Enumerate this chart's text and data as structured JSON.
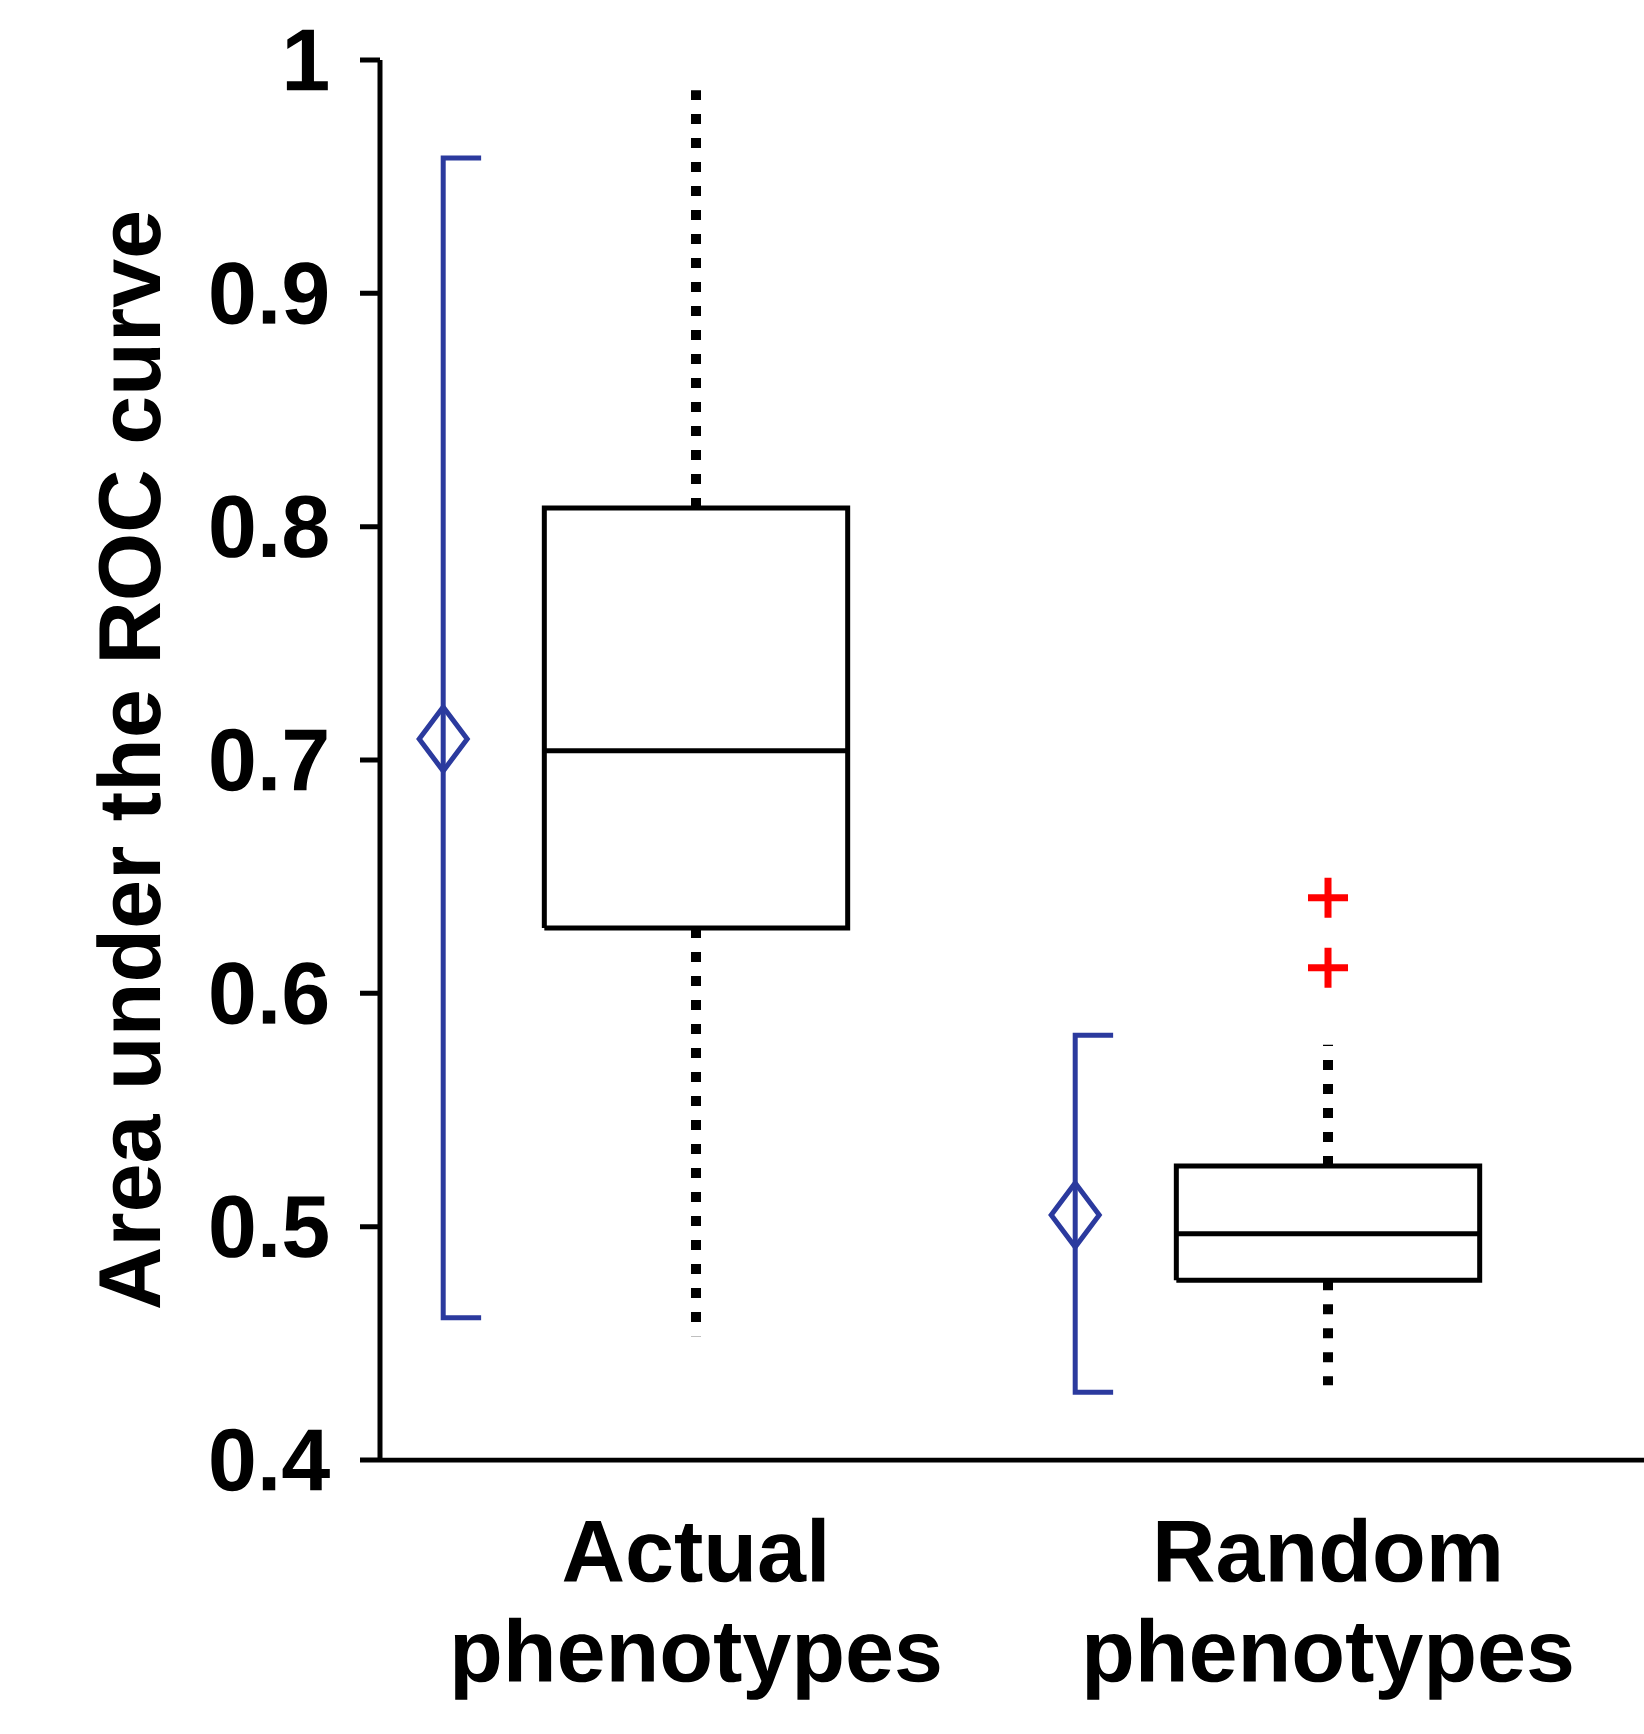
{
  "chart_data": {
    "type": "box",
    "ylabel": "Area under the ROC curve",
    "categories": [
      "Actual phenotypes",
      "Random phenotypes"
    ],
    "ylim": [
      0.4,
      1
    ],
    "yticks": [
      0.4,
      0.5,
      0.6,
      0.7,
      0.8,
      0.9,
      1
    ],
    "grid": false,
    "series": [
      {
        "color": "#000000",
        "boxes": [
          {
            "low": 0.453,
            "q1": 0.628,
            "median": 0.704,
            "q3": 0.808,
            "high": 0.987
          },
          {
            "low": 0.432,
            "q1": 0.477,
            "median": 0.497,
            "q3": 0.526,
            "high": 0.578,
            "outliers": [
              0.611,
              0.641
            ]
          }
        ]
      },
      {
        "type": "scatter",
        "color": "#2b3a9e",
        "marker": "diamond",
        "values": [
          0.709,
          0.505
        ],
        "errors": [
          [
            0.461,
            0.958
          ],
          [
            0.429,
            0.582
          ]
        ]
      }
    ]
  }
}
